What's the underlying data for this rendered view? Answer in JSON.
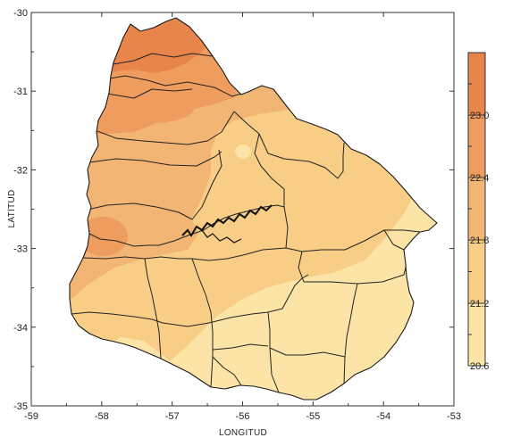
{
  "map": {
    "x_axis": {
      "label": "LONGITUD",
      "ticks": [
        -59,
        -58,
        -57,
        -56,
        -55,
        -54,
        -53
      ],
      "range": [
        -59,
        -53
      ]
    },
    "y_axis": {
      "label": "LATITUD",
      "ticks": [
        -30,
        -31,
        -32,
        -33,
        -34,
        -35
      ],
      "range": [
        -35,
        -30
      ]
    },
    "colorbar": {
      "levels": [
        20.6,
        21.2,
        21.8,
        22.4,
        23.0
      ],
      "colors": [
        "#fbe4a6",
        "#f8cd86",
        "#f3b573",
        "#ee9d5e",
        "#e8854a"
      ]
    }
  }
}
